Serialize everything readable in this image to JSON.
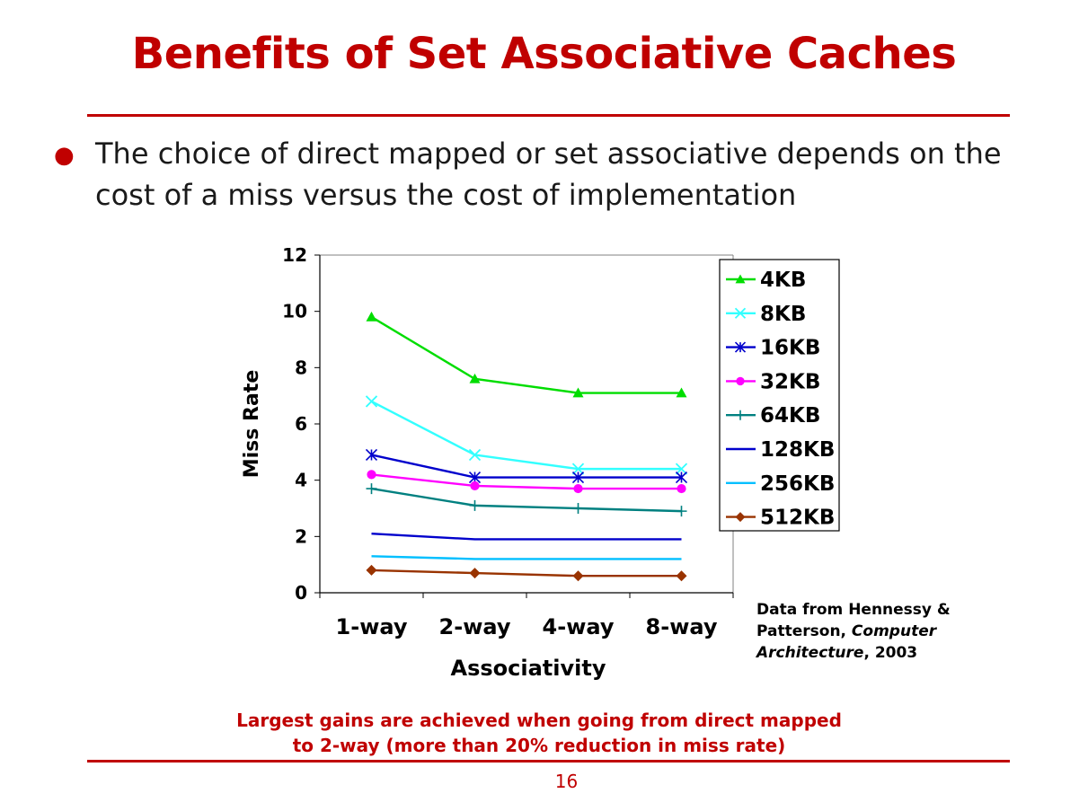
{
  "slide": {
    "title": "Benefits of Set Associative Caches",
    "bullet": "The choice of direct mapped or set associative depends on the cost of a miss versus the cost of implementation",
    "source_note": {
      "prefix": "Data from Hennessy & Patterson, ",
      "book_title": "Computer Architecture",
      "suffix": ", 2003"
    },
    "conclusion_line1": "Largest gains are achieved when going from direct mapped",
    "conclusion_line2": "to 2-way (more than 20% reduction in miss rate)",
    "page_number": "16"
  },
  "chart_data": {
    "type": "line",
    "title": "",
    "xlabel": "Associativity",
    "ylabel": "Miss Rate",
    "categories": [
      "1-way",
      "2-way",
      "4-way",
      "8-way"
    ],
    "ylim": [
      0,
      12
    ],
    "yticks": [
      0,
      2,
      4,
      6,
      8,
      10,
      12
    ],
    "legend_position": "top-right",
    "grid": false,
    "series": [
      {
        "name": "4KB",
        "color": "#00dd00",
        "marker": "triangle",
        "values": [
          9.8,
          7.6,
          7.1,
          7.1
        ]
      },
      {
        "name": "8KB",
        "color": "#33ffff",
        "marker": "x",
        "values": [
          6.8,
          4.9,
          4.4,
          4.4
        ]
      },
      {
        "name": "16KB",
        "color": "#0000cc",
        "marker": "star",
        "values": [
          4.9,
          4.1,
          4.1,
          4.1
        ]
      },
      {
        "name": "32KB",
        "color": "#ff00ff",
        "marker": "circle",
        "values": [
          4.2,
          3.8,
          3.7,
          3.7
        ]
      },
      {
        "name": "64KB",
        "color": "#008080",
        "marker": "plus",
        "values": [
          3.7,
          3.1,
          3.0,
          2.9
        ]
      },
      {
        "name": "128KB",
        "color": "#0000cc",
        "marker": "none",
        "values": [
          2.1,
          1.9,
          1.9,
          1.9
        ]
      },
      {
        "name": "256KB",
        "color": "#00bfff",
        "marker": "none",
        "values": [
          1.3,
          1.2,
          1.2,
          1.2
        ]
      },
      {
        "name": "512KB",
        "color": "#993300",
        "marker": "diamond",
        "values": [
          0.8,
          0.7,
          0.6,
          0.6
        ]
      }
    ]
  }
}
